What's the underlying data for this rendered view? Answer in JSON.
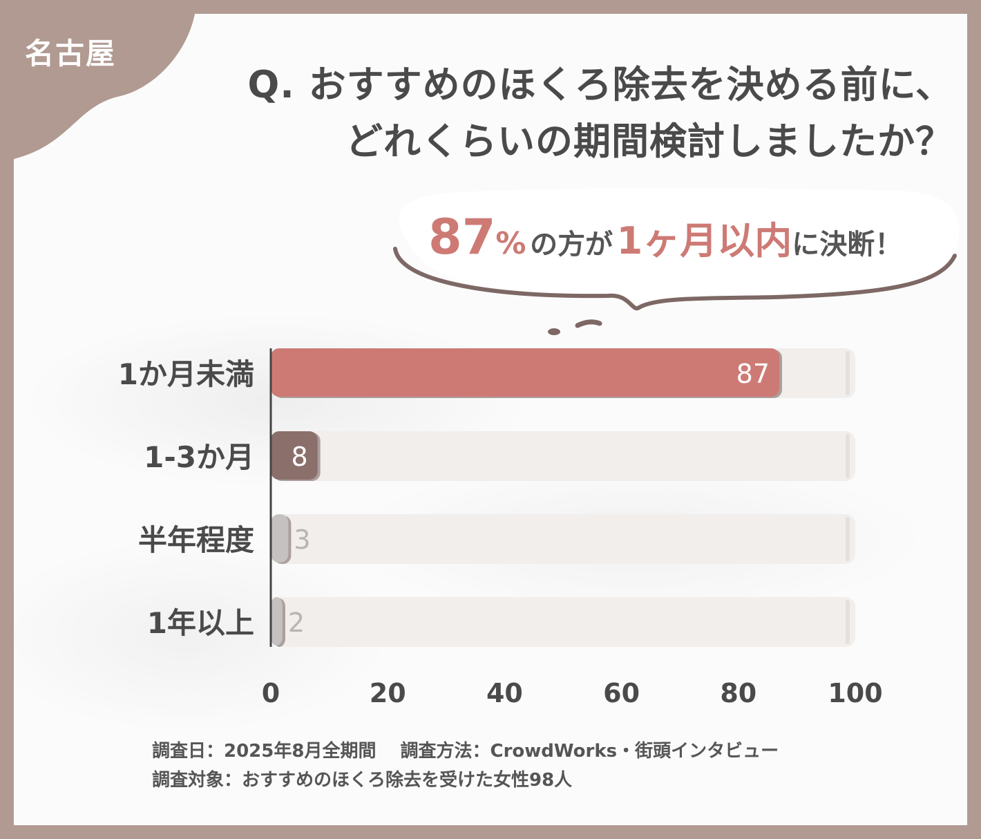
{
  "region_label": "名古屋",
  "title_line1": "Q. おすすめのほくろ除去を決める前に、",
  "title_line2": "どれくらいの期間検討しましたか？",
  "callout": {
    "value": "87",
    "percent": "%",
    "text1": "の方が",
    "highlight": "1ヶ月以内",
    "text2": "に決断！"
  },
  "footer": {
    "line1": "調査日：2025年8月全期間　 調査方法：CrowdWorks・街頭インタビュー",
    "line2": "調査対象：おすすめのほくろ除去を受けた女性98人"
  },
  "colors": {
    "accent": "#cd7a75",
    "second": "#8a6f6b",
    "light": "#c4c1c0",
    "track": "#f1eeec",
    "frame": "#b19a92"
  },
  "chart_data": {
    "type": "bar",
    "orientation": "horizontal",
    "categories": [
      "1か月未満",
      "1-3か月",
      "半年程度",
      "1年以上"
    ],
    "values": [
      87,
      8,
      3,
      2
    ],
    "xlim": [
      0,
      100
    ],
    "x_ticks": [
      "0",
      "20",
      "40",
      "60",
      "80",
      "100"
    ],
    "grid": false,
    "legend": "none"
  }
}
